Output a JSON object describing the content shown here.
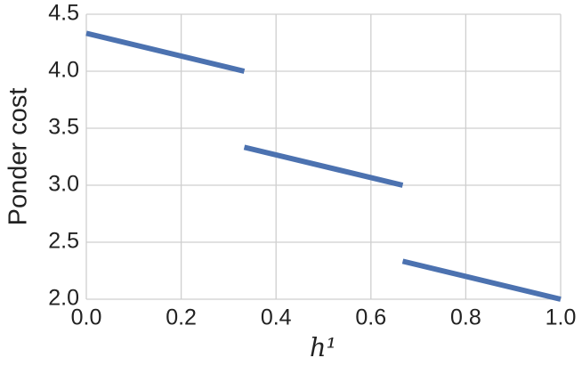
{
  "chart_data": {
    "type": "line",
    "x_label": "h¹",
    "y_label": "Ponder cost",
    "x": [
      0,
      0.333,
      0.333,
      0.333,
      0.667,
      0.667,
      0.667,
      1.0
    ],
    "series": [
      {
        "name": "Ponder cost",
        "color": "#4c72b0",
        "values": [
          4.333,
          4.0,
          null,
          3.333,
          3.0,
          null,
          2.333,
          2.0
        ]
      }
    ],
    "xlim": [
      0,
      1
    ],
    "ylim": [
      2,
      4.5
    ],
    "xticks": [
      {
        "value": 0,
        "label": "0.0"
      },
      0.2,
      0.4,
      0.6,
      0.8,
      {
        "value": 1,
        "label": "1.0"
      }
    ],
    "yticks": [
      {
        "value": 2,
        "label": "2.0"
      },
      2.5,
      {
        "value": 3,
        "label": "3.0"
      },
      3.5,
      {
        "value": 4,
        "label": "4.0"
      },
      4.5
    ],
    "grid": true
  }
}
